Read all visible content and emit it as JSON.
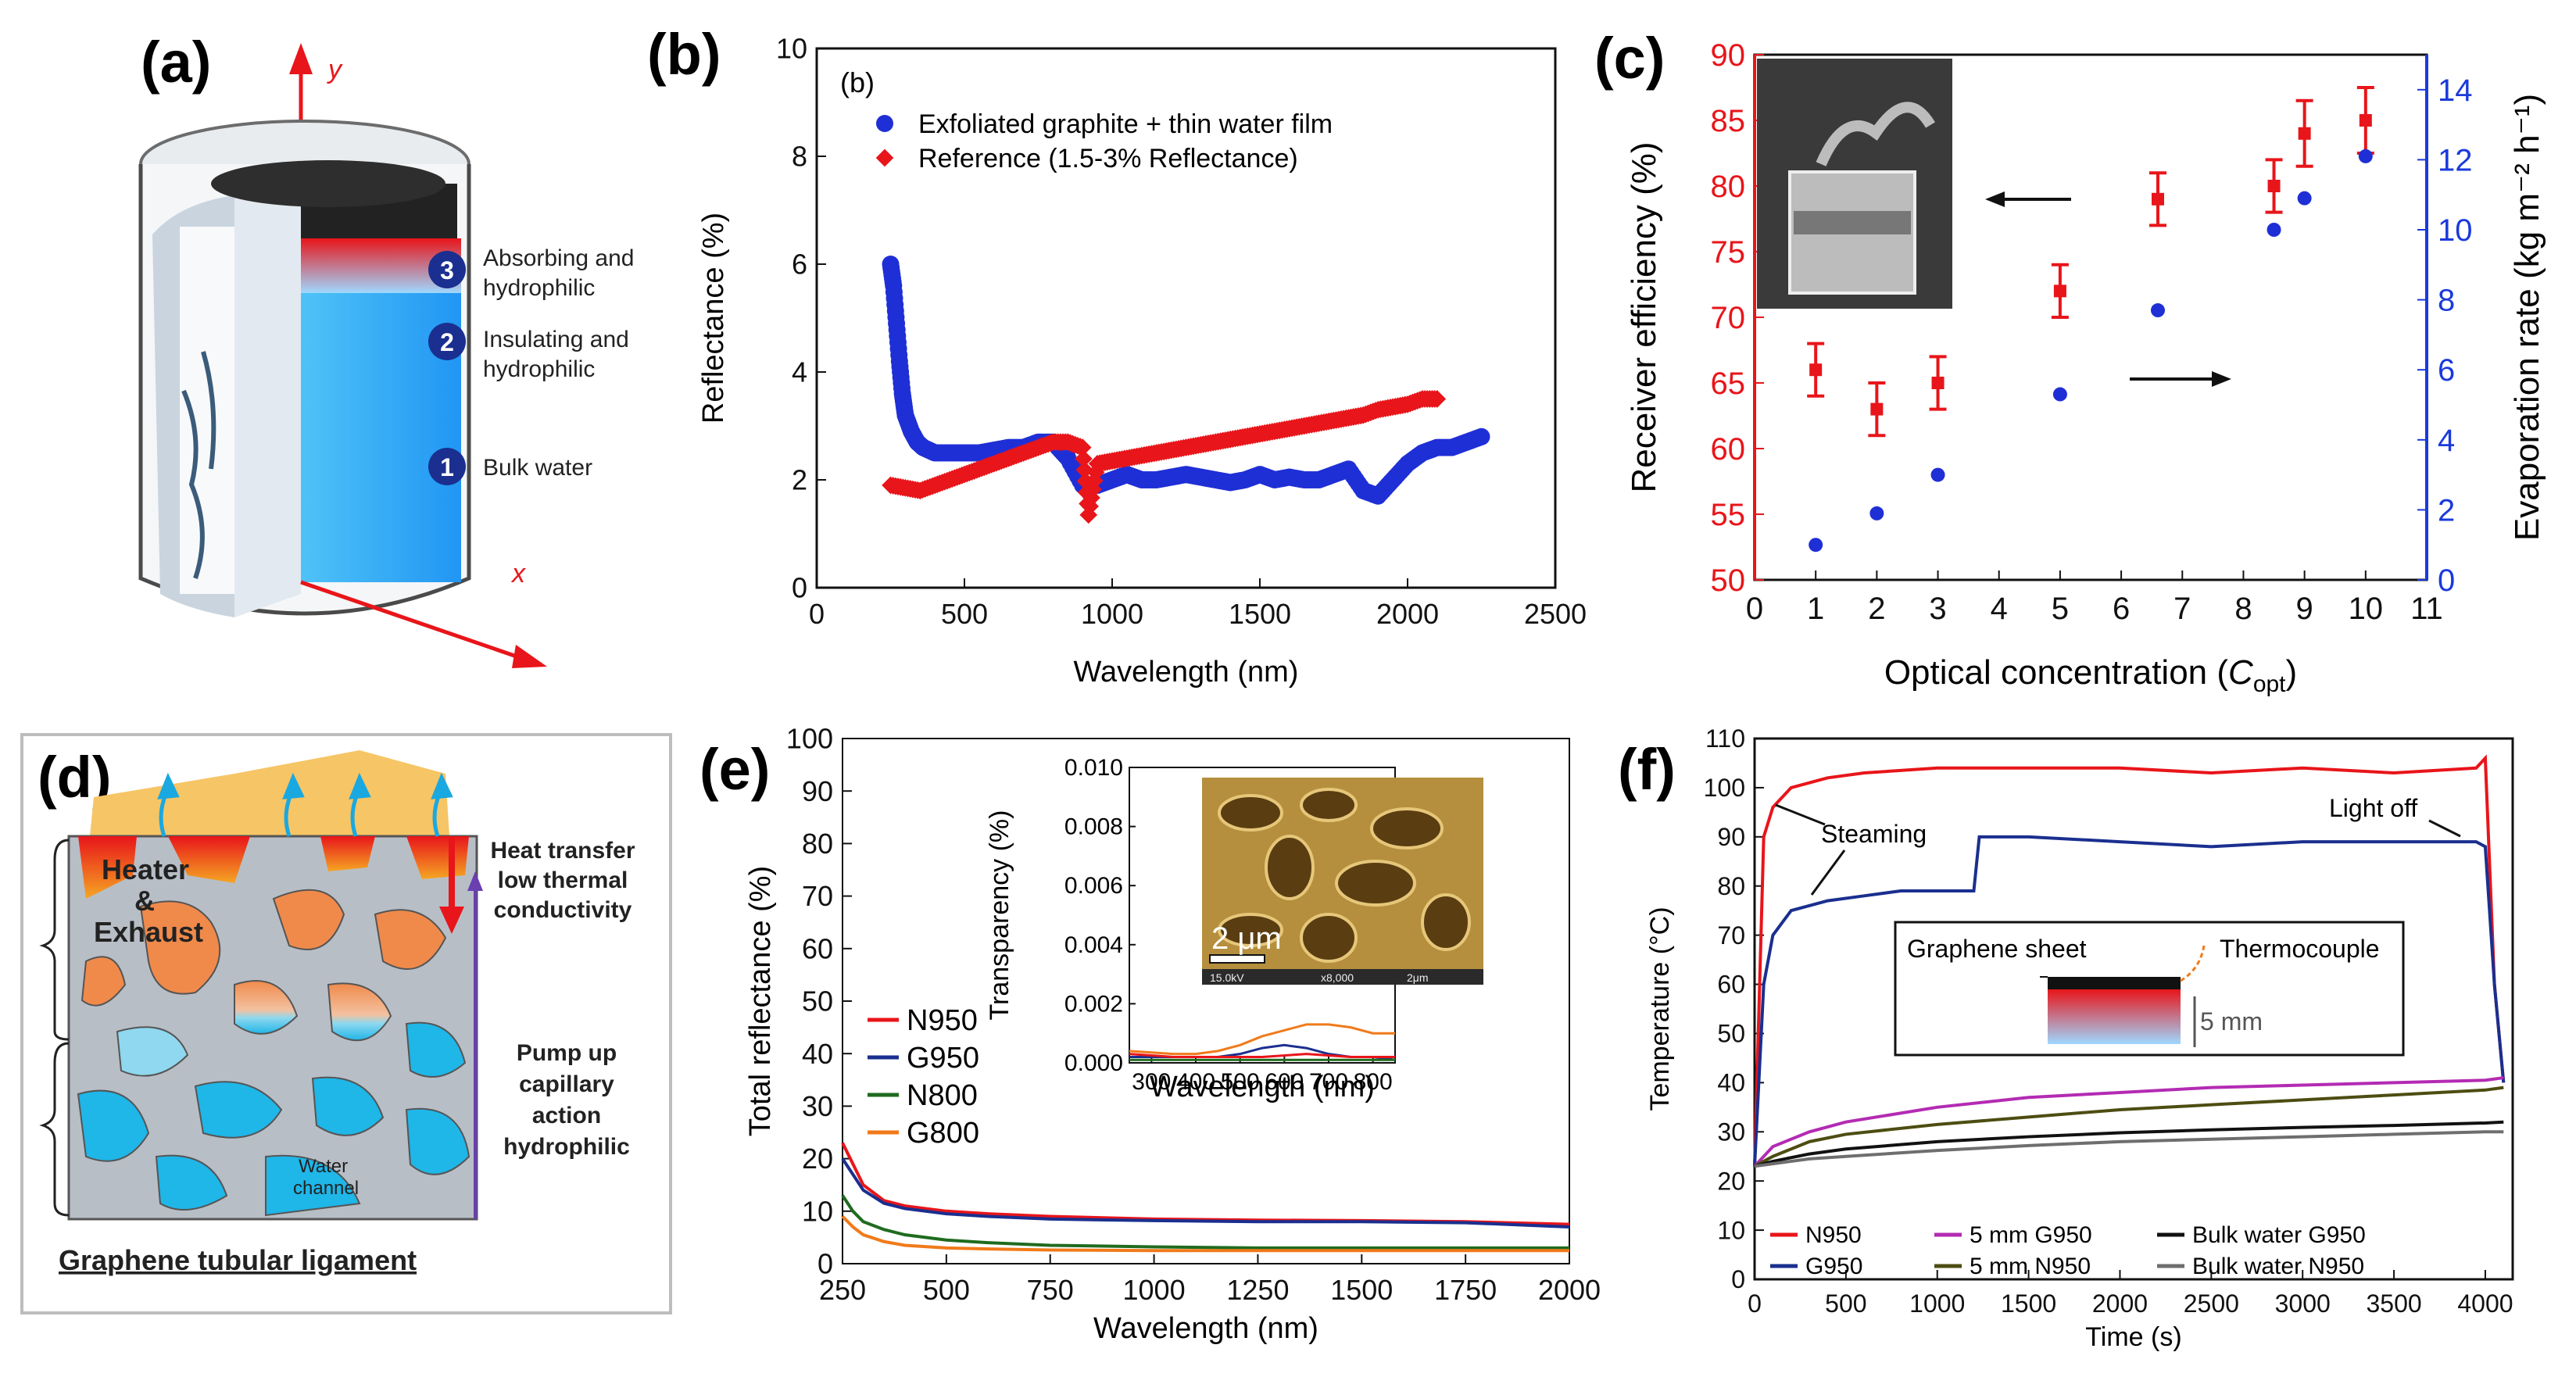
{
  "colors": {
    "red": "#e8151a",
    "blue": "#1f2fd6",
    "navy": "#1a2f8f",
    "green": "#1f6b1f",
    "orange": "#f07a1a",
    "magenta": "#b32bb3",
    "olive": "#4d4d12",
    "black": "#111111",
    "gray": "#6e6e6e",
    "cyan": "#1aa8e0",
    "accent_blue": "#1a3adb"
  },
  "panel_a": {
    "label": "(a)",
    "axis_y": "y",
    "axis_x": "x",
    "layers": [
      {
        "num": "3",
        "line1": "Absorbing and",
        "line2": "hydrophilic"
      },
      {
        "num": "2",
        "line1": "Insulating and",
        "line2": "hydrophilic"
      },
      {
        "num": "1",
        "line1": "Bulk water",
        "line2": ""
      }
    ]
  },
  "panel_d": {
    "label": "(d)",
    "heater_line1": "Heater",
    "heater_amp": "&",
    "heater_line2": "Exhaust",
    "water_channel_1": "Water",
    "water_channel_2": "channel",
    "heat_transfer": [
      "Heat transfer",
      "low thermal",
      "conductivity"
    ],
    "pump_up": [
      "Pump up",
      "capillary",
      "action",
      "hydrophilic"
    ],
    "caption": "Graphene tubular ligament"
  },
  "chart_data": [
    {
      "id": "b",
      "type": "scatter",
      "panel_label": "(b)",
      "inner_label": "(b)",
      "xlabel": "Wavelength (nm)",
      "ylabel": "Reflectance (%)",
      "xlim": [
        0,
        2500
      ],
      "ylim": [
        0,
        10
      ],
      "xticks": [
        0,
        500,
        1000,
        1500,
        2000,
        2500
      ],
      "yticks": [
        0,
        2,
        4,
        6,
        8,
        10
      ],
      "series": [
        {
          "name": "Exfoliated graphite + thin water film",
          "color": "#1f2fd6",
          "marker": "circle",
          "x": [
            250,
            260,
            270,
            280,
            290,
            300,
            320,
            340,
            360,
            380,
            400,
            450,
            500,
            550,
            600,
            650,
            700,
            750,
            800,
            850,
            900,
            950,
            1000,
            1050,
            1100,
            1150,
            1200,
            1250,
            1300,
            1350,
            1400,
            1450,
            1500,
            1550,
            1600,
            1650,
            1700,
            1750,
            1800,
            1850,
            1900,
            1950,
            2000,
            2050,
            2100,
            2150,
            2200,
            2250
          ],
          "y": [
            6.0,
            5.6,
            4.9,
            4.2,
            3.6,
            3.2,
            2.9,
            2.7,
            2.6,
            2.55,
            2.5,
            2.5,
            2.5,
            2.5,
            2.55,
            2.6,
            2.6,
            2.7,
            2.7,
            2.4,
            1.9,
            1.9,
            2.0,
            2.1,
            2.0,
            2.0,
            2.05,
            2.1,
            2.05,
            2.0,
            1.95,
            2.0,
            2.1,
            2.0,
            2.05,
            2.0,
            2.0,
            2.1,
            2.2,
            1.8,
            1.7,
            2.0,
            2.3,
            2.5,
            2.6,
            2.6,
            2.7,
            2.8
          ]
        },
        {
          "name": "Reference (1.5-3% Reflectance)",
          "color": "#e8151a",
          "marker": "diamond",
          "x": [
            250,
            300,
            350,
            400,
            450,
            500,
            550,
            600,
            650,
            700,
            750,
            800,
            850,
            900,
            920,
            950,
            1000,
            1050,
            1100,
            1150,
            1200,
            1250,
            1300,
            1350,
            1400,
            1450,
            1500,
            1550,
            1600,
            1650,
            1700,
            1750,
            1800,
            1850,
            1900,
            1950,
            2000,
            2050,
            2100
          ],
          "y": [
            1.9,
            1.85,
            1.8,
            1.9,
            2.0,
            2.1,
            2.2,
            2.3,
            2.4,
            2.5,
            2.6,
            2.7,
            2.7,
            2.6,
            1.35,
            2.3,
            2.35,
            2.4,
            2.45,
            2.5,
            2.55,
            2.6,
            2.65,
            2.7,
            2.75,
            2.8,
            2.85,
            2.9,
            2.95,
            3.0,
            3.05,
            3.1,
            3.15,
            3.2,
            3.3,
            3.35,
            3.4,
            3.5,
            3.5
          ]
        }
      ]
    },
    {
      "id": "c",
      "type": "scatter",
      "panel_label": "(c)",
      "xlabel": "Optical concentration (",
      "xlabel_sym": "C",
      "xlabel_sub": "opt",
      "xlabel_end": ")",
      "ylabel": "Receiver efficiency (%)",
      "y2label": "Evaporation rate (kg m⁻² h⁻¹)",
      "xlim": [
        0,
        11
      ],
      "ylim": [
        50,
        90
      ],
      "y2lim": [
        0,
        15
      ],
      "xticks": [
        0,
        1,
        2,
        3,
        4,
        5,
        6,
        7,
        8,
        9,
        10,
        11
      ],
      "yticks": [
        50,
        55,
        60,
        65,
        70,
        75,
        80,
        85,
        90
      ],
      "y2ticks": [
        0,
        2,
        4,
        6,
        8,
        10,
        12,
        14
      ],
      "series": [
        {
          "name": "Receiver efficiency",
          "axis": "left",
          "color": "#e8151a",
          "marker": "square-errorbar",
          "x": [
            1,
            2,
            3,
            5,
            6.6,
            8.5,
            9,
            10
          ],
          "y": [
            66,
            63,
            65,
            72,
            79,
            80,
            84,
            85
          ],
          "err": [
            2,
            2,
            2,
            2,
            2,
            2,
            2.5,
            2.5
          ]
        },
        {
          "name": "Evaporation rate",
          "axis": "right",
          "color": "#1f2fd6",
          "marker": "circle",
          "x": [
            1,
            2,
            3,
            5,
            6.6,
            8.5,
            9,
            10
          ],
          "y": [
            1.0,
            1.9,
            3.0,
            5.3,
            7.7,
            10.0,
            10.9,
            12.1
          ]
        }
      ]
    },
    {
      "id": "e",
      "type": "line",
      "panel_label": "(e)",
      "xlabel": "Wavelength (nm)",
      "ylabel": "Total reflectance (%)",
      "xlim": [
        250,
        2000
      ],
      "ylim": [
        0,
        100
      ],
      "xticks": [
        250,
        500,
        750,
        1000,
        1250,
        1500,
        1750,
        2000
      ],
      "yticks": [
        0,
        10,
        20,
        30,
        40,
        50,
        60,
        70,
        80,
        90,
        100
      ],
      "series": [
        {
          "name": "N950",
          "color": "#e8151a",
          "x": [
            250,
            275,
            300,
            350,
            400,
            500,
            600,
            750,
            1000,
            1250,
            1500,
            1750,
            2000
          ],
          "y": [
            23,
            19,
            15,
            12,
            11,
            10,
            9.5,
            9,
            8.5,
            8.3,
            8.2,
            8,
            7.5
          ]
        },
        {
          "name": "G950",
          "color": "#1a2f8f",
          "x": [
            250,
            275,
            300,
            350,
            400,
            500,
            600,
            750,
            1000,
            1250,
            1500,
            1750,
            2000
          ],
          "y": [
            20,
            17,
            14,
            11.5,
            10.5,
            9.5,
            9,
            8.5,
            8.2,
            8,
            8,
            7.8,
            7
          ]
        },
        {
          "name": "N800",
          "color": "#1f6b1f",
          "x": [
            250,
            275,
            300,
            350,
            400,
            500,
            600,
            750,
            1000,
            1250,
            1500,
            1750,
            2000
          ],
          "y": [
            13,
            10,
            8,
            6.5,
            5.5,
            4.5,
            4,
            3.5,
            3.2,
            3,
            3,
            3,
            3
          ]
        },
        {
          "name": "G800",
          "color": "#f07a1a",
          "x": [
            250,
            275,
            300,
            350,
            400,
            500,
            600,
            750,
            1000,
            1250,
            1500,
            1750,
            2000
          ],
          "y": [
            9,
            7,
            5.5,
            4.2,
            3.5,
            3,
            2.8,
            2.6,
            2.5,
            2.5,
            2.5,
            2.5,
            2.5
          ]
        }
      ],
      "inset": {
        "xlabel": "Wavelength (nm)",
        "ylabel": "Transparency (%)",
        "xlim": [
          250,
          850
        ],
        "ylim": [
          0,
          0.01
        ],
        "xticks": [
          300,
          400,
          500,
          600,
          700,
          800
        ],
        "yticks": [
          0.0,
          0.002,
          0.004,
          0.006,
          0.008,
          0.01
        ],
        "ytick_labels": [
          "0.000",
          "0.002",
          "0.004",
          "0.006",
          "0.008",
          "0.010"
        ],
        "scale_label": "2 μm",
        "sem_info": [
          "15.0kV",
          "x8,000",
          "2μm"
        ],
        "series": [
          {
            "name": "G800",
            "color": "#f07a1a",
            "x": [
              250,
              350,
              400,
              450,
              500,
              550,
              600,
              650,
              700,
              750,
              800,
              850
            ],
            "y": [
              0.0004,
              0.0003,
              0.0003,
              0.0004,
              0.0006,
              0.0009,
              0.0011,
              0.0013,
              0.0013,
              0.0012,
              0.001,
              0.001
            ]
          },
          {
            "name": "G950",
            "color": "#1a2f8f",
            "x": [
              250,
              350,
              400,
              450,
              500,
              550,
              600,
              650,
              700,
              750,
              800,
              850
            ],
            "y": [
              0.0002,
              0.0002,
              0.0002,
              0.0002,
              0.0003,
              0.0005,
              0.0006,
              0.0005,
              0.0003,
              0.0002,
              0.0002,
              0.0001
            ]
          },
          {
            "name": "N950",
            "color": "#e8151a",
            "x": [
              250,
              350,
              450,
              550,
              650,
              750,
              850
            ],
            "y": [
              0.0003,
              0.0002,
              0.0002,
              0.0002,
              0.0003,
              0.0002,
              0.0002
            ]
          },
          {
            "name": "N800",
            "color": "#1f6b1f",
            "x": [
              250,
              350,
              450,
              550,
              650,
              750,
              850
            ],
            "y": [
              0.0001,
              0.0001,
              0.0001,
              0.0001,
              0.0001,
              0.0001,
              0.0001
            ]
          }
        ]
      }
    },
    {
      "id": "f",
      "type": "line",
      "panel_label": "(f)",
      "xlabel": "Time (s)",
      "ylabel": "Temperature (°C)",
      "xlim": [
        0,
        4150
      ],
      "ylim": [
        0,
        110
      ],
      "xticks": [
        0,
        500,
        1000,
        1500,
        2000,
        2500,
        3000,
        3500,
        4000
      ],
      "yticks": [
        0,
        10,
        20,
        30,
        40,
        50,
        60,
        70,
        80,
        90,
        100,
        110
      ],
      "annotations": {
        "steaming": "Steaming",
        "light_off": "Light off",
        "graphene_sheet": "Graphene sheet",
        "thermocouple": "Thermocouple",
        "thickness": "5 mm"
      },
      "series": [
        {
          "name": "N950",
          "color": "#e8151a",
          "x": [
            0,
            50,
            100,
            200,
            400,
            600,
            1000,
            1500,
            2000,
            2500,
            3000,
            3500,
            3950,
            4000,
            4050,
            4100
          ],
          "y": [
            23,
            90,
            96,
            100,
            102,
            103,
            104,
            104,
            104,
            103,
            104,
            103,
            104,
            106,
            60,
            40
          ]
        },
        {
          "name": "G950",
          "color": "#1a2f8f",
          "x": [
            0,
            50,
            100,
            200,
            400,
            600,
            800,
            1000,
            1200,
            1230,
            1500,
            2000,
            2500,
            3000,
            3500,
            3950,
            4000,
            4050,
            4100
          ],
          "y": [
            23,
            60,
            70,
            75,
            77,
            78,
            79,
            79,
            79,
            90,
            90,
            89,
            88,
            89,
            89,
            89,
            88,
            60,
            40
          ]
        },
        {
          "name": "5 mm G950",
          "color": "#b32bb3",
          "x": [
            0,
            100,
            300,
            500,
            1000,
            1500,
            2000,
            2500,
            3000,
            3500,
            4000,
            4100
          ],
          "y": [
            23,
            27,
            30,
            32,
            35,
            37,
            38,
            39,
            39.5,
            40,
            40.5,
            41
          ]
        },
        {
          "name": "5 mm N950",
          "color": "#4d4d12",
          "x": [
            0,
            100,
            300,
            500,
            1000,
            1500,
            2000,
            2500,
            3000,
            3500,
            4000,
            4100
          ],
          "y": [
            23,
            25,
            28,
            29.5,
            31.5,
            33,
            34.5,
            35.5,
            36.5,
            37.5,
            38.5,
            39
          ]
        },
        {
          "name": "Bulk water G950",
          "color": "#111111",
          "x": [
            0,
            100,
            300,
            500,
            1000,
            1500,
            2000,
            2500,
            3000,
            3500,
            4000,
            4100
          ],
          "y": [
            23,
            24,
            25.5,
            26.5,
            28,
            29,
            29.8,
            30.4,
            30.9,
            31.3,
            31.8,
            32
          ]
        },
        {
          "name": "Bulk water N950",
          "color": "#6e6e6e",
          "x": [
            0,
            100,
            300,
            500,
            1000,
            1500,
            2000,
            2500,
            3000,
            3500,
            4000,
            4100
          ],
          "y": [
            23,
            23.5,
            24.5,
            25,
            26.2,
            27.2,
            28,
            28.5,
            29,
            29.5,
            30,
            30
          ]
        }
      ]
    }
  ]
}
